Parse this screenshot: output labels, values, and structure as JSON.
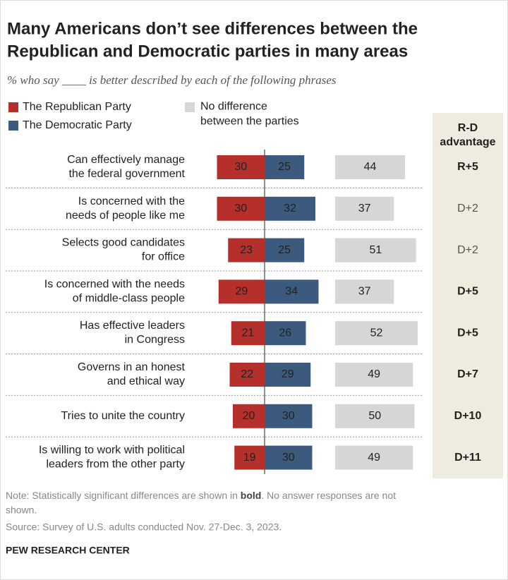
{
  "chart_data": {
    "type": "diverging-bar",
    "title": [
      "Many Americans don’t see differences between the",
      "Republican and Democratic parties in many areas"
    ],
    "subtitle": "% who say ____ is better described by each of the following phrases",
    "categories": [
      "Can effectively manage\nthe federal government",
      "Is concerned with the\nneeds of people like me",
      "Selects good candidates\nfor office",
      "Is concerned with the needs\nof middle-class people",
      "Has effective leaders\nin Congress",
      "Governs in an honest\nand ethical way",
      "Tries to unite the country",
      "Is willing to work with political\nleaders from the other party"
    ],
    "series": [
      {
        "name": "The Republican Party",
        "color": "#b5302a",
        "values": [
          30,
          30,
          23,
          29,
          21,
          22,
          20,
          19
        ]
      },
      {
        "name": "The Democratic Party",
        "color": "#3c5a7e",
        "values": [
          25,
          32,
          25,
          34,
          26,
          29,
          30,
          30
        ]
      },
      {
        "name": "No difference\nbetween the parties",
        "color": "#d6d6d6",
        "values": [
          44,
          37,
          51,
          37,
          52,
          49,
          50,
          49
        ]
      }
    ],
    "advantage": {
      "title": "R-D\nadvantage",
      "labels": [
        "R+5",
        "D+2",
        "D+2",
        "D+5",
        "D+5",
        "D+7",
        "D+10",
        "D+11"
      ],
      "bold": [
        true,
        false,
        false,
        true,
        true,
        true,
        true,
        true
      ]
    },
    "note": [
      "Note: Statistically significant differences are shown in ",
      "bold",
      ". No answer responses are not",
      "shown."
    ],
    "source": "Source: Survey of U.S. adults conducted Nov. 27-Dec. 3, 2023.",
    "credit": "PEW RESEARCH CENTER"
  }
}
